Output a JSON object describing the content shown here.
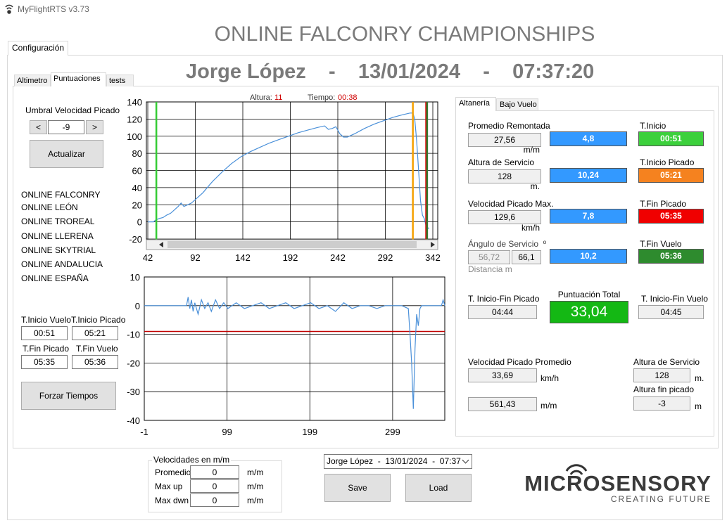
{
  "window": {
    "title": "MyFlightRTS v3.73"
  },
  "header": {
    "title": "ONLINE FALCONRY CHAMPIONSHIPS",
    "subtitle": "Jorge López    -    13/01/2024    -    07:37:20"
  },
  "tabs": {
    "main": [
      "Configuración"
    ],
    "sub": [
      "Altimetro",
      "Puntuaciones",
      "tests"
    ],
    "right": [
      "Altanería",
      "Bajo Vuelo"
    ]
  },
  "threshold": {
    "label": "Umbral Velocidad Picado",
    "decrement": "<",
    "value": "-9",
    "increment": ">",
    "button": "Actualizar"
  },
  "competitions": [
    "ONLINE FALCONRY",
    "ONLINE LEÓN",
    "ONLINE TROREAL",
    "ONLINE LLERENA",
    "ONLINE SKYTRIAL",
    "ONLINE ANDALUCIA",
    "ONLINE ESPAÑA"
  ],
  "flight_times": [
    {
      "label": "T.Inicio Vuelo",
      "value": "00:51"
    },
    {
      "label": "T.Inicio Picado",
      "value": "05:21"
    },
    {
      "label": "T.Fin Picado",
      "value": "05:35"
    },
    {
      "label": "T.Fin Vuelo",
      "value": "05:36"
    }
  ],
  "force_button": "Forzar Tiempos",
  "chart_data": [
    {
      "type": "line",
      "readout": {
        "altitude_label": "Altura:",
        "altitude": "11",
        "time_label": "Tiempo:",
        "time": "00:38"
      },
      "x": [
        42,
        48,
        50,
        54,
        58,
        62,
        66,
        70,
        74,
        77,
        80,
        84,
        88,
        92,
        100,
        110,
        120,
        130,
        140,
        150,
        160,
        170,
        180,
        190,
        200,
        210,
        220,
        228,
        232,
        236,
        240,
        244,
        248,
        252,
        260,
        270,
        280,
        290,
        300,
        310,
        318,
        321,
        323,
        325,
        327,
        329,
        331,
        333,
        335,
        338
      ],
      "series": [
        {
          "color": "#4a90d9",
          "values": [
            0,
            0,
            2,
            4,
            5,
            8,
            10,
            14,
            18,
            22,
            18,
            20,
            22,
            26,
            34,
            47,
            58,
            68,
            76,
            82,
            87,
            92,
            96,
            100,
            104,
            107,
            110,
            112,
            108,
            109,
            111,
            103,
            99,
            99,
            103,
            109,
            114,
            118,
            122,
            125,
            127,
            127,
            120,
            95,
            60,
            25,
            8,
            4,
            -5,
            -8
          ]
        }
      ],
      "markers": [
        {
          "x": 51,
          "color": "#33cc33"
        },
        {
          "x": 321,
          "color": "#f5a000"
        },
        {
          "x": 335,
          "color": "#e00000"
        },
        {
          "x": 336,
          "color": "#2e7d32"
        }
      ],
      "xlim": [
        42,
        342
      ],
      "xticks": [
        42,
        92,
        142,
        192,
        242,
        292,
        342
      ],
      "ylim": [
        -20,
        140
      ],
      "yticks": [
        -20,
        0,
        20,
        40,
        60,
        80,
        100,
        120,
        140
      ],
      "grid": true
    },
    {
      "type": "line",
      "x": [
        -1,
        10,
        20,
        30,
        40,
        50,
        52,
        54,
        56,
        58,
        60,
        64,
        68,
        72,
        76,
        80,
        85,
        90,
        95,
        100,
        110,
        120,
        130,
        140,
        150,
        160,
        170,
        180,
        190,
        200,
        210,
        220,
        230,
        240,
        250,
        260,
        270,
        280,
        290,
        300,
        310,
        318,
        320,
        322,
        324,
        326,
        328,
        330,
        332,
        334,
        340,
        350,
        358,
        360,
        362
      ],
      "series": [
        {
          "color": "#4a90d9",
          "values": [
            0,
            0,
            0,
            0,
            0,
            0,
            3,
            -1,
            2,
            -2,
            1,
            -3,
            2,
            -1,
            1,
            -2,
            2,
            -1,
            1,
            -1,
            1,
            -1,
            0,
            1,
            -1,
            0,
            1,
            -1,
            0,
            1,
            -1,
            0,
            -2,
            1,
            -1,
            0,
            0,
            -1,
            0,
            0,
            0,
            -1,
            -10,
            -20,
            -36,
            -15,
            -3,
            -7,
            -1,
            0,
            0,
            0,
            0,
            2,
            0
          ]
        }
      ],
      "hlines": [
        {
          "y": -9,
          "color": "#c00000"
        }
      ],
      "xlim": [
        -1,
        362
      ],
      "xticks": [
        -1,
        99,
        199,
        299
      ],
      "ylim": [
        -40,
        10
      ],
      "yticks": [
        -40,
        -30,
        -20,
        -10,
        0,
        10
      ],
      "grid": true
    }
  ],
  "scores": {
    "score_color": "#3399ff",
    "rows": [
      {
        "label": "Promedio Remontada",
        "value": "27,56",
        "unit": "m/m",
        "score": "4,8",
        "time_label": "T.Inicio",
        "time": "00:51",
        "time_color": "#3cd03c"
      },
      {
        "label": "Altura de Servicio",
        "value": "128",
        "unit": "m.",
        "score": "10,24",
        "time_label": "T.Inicio Picado",
        "time": "05:21",
        "time_color": "#f5821f"
      },
      {
        "label": "Velocidad Picado Max.",
        "value": "129,6",
        "unit": "km/h",
        "score": "7,8",
        "time_label": "T.Fin Picado",
        "time": "05:35",
        "time_color": "#f00000"
      },
      {
        "label": "Ángulo de Servicio  º",
        "value": "56,72",
        "secondary": "66,1",
        "note": "Distancia m",
        "score": "10,2",
        "time_label": "T.Fin Vuelo",
        "time": "05:36",
        "time_color": "#2e8b2e"
      }
    ]
  },
  "totals": {
    "picado_label": "T. Inicio-Fin Picado",
    "picado": "04:44",
    "total_label": "Puntuación Total",
    "total": "33,04",
    "total_color": "#14b814",
    "vuelo_label": "T. Inicio-Fin Vuelo",
    "vuelo": "04:45"
  },
  "summary": {
    "speed_label": "Velocidad Picado Promedio",
    "speed": "33,69",
    "speed_unit": "km/h",
    "rate": "561,43",
    "rate_unit": "m/m",
    "height_label": "Altura de Servicio",
    "height": "128",
    "height_unit": "m.",
    "end_label": "Altura fin picado",
    "end": "-3",
    "end_unit": "m"
  },
  "speeds": {
    "title": "Velocidades en m/m",
    "rows": [
      {
        "label": "Promedio",
        "value": "0",
        "unit": "m/m"
      },
      {
        "label": "Max up",
        "value": "0",
        "unit": "m/m"
      },
      {
        "label": "Max dwn",
        "value": "0",
        "unit": "m/m"
      }
    ]
  },
  "session": "Jorge López  -  13/01/2024  -  07:37",
  "buttons": [
    "Save",
    "Load"
  ],
  "logo": {
    "name": "MICROSENSORY",
    "tagline": "CREATING FUTURE"
  }
}
